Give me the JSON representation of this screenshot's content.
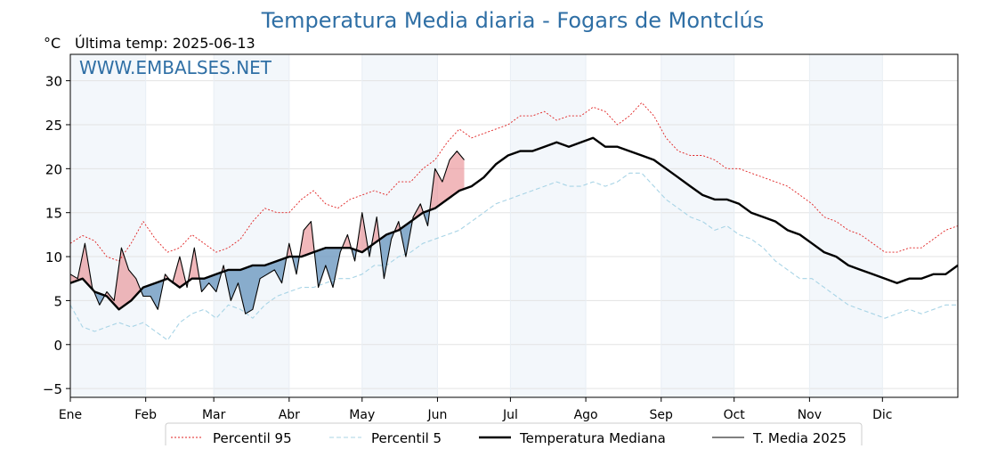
{
  "chart_data": {
    "type": "line",
    "title": "Temperatura Media diaria - Fogars de Montclús",
    "unit": "°C",
    "subtitle": "Última temp: 2025-06-13",
    "watermark": "WWW.EMBALSES.NET",
    "ylim": [
      -6,
      33
    ],
    "y_ticks": [
      -5,
      0,
      5,
      10,
      15,
      20,
      25,
      30
    ],
    "x_range_days": [
      1,
      366
    ],
    "months": [
      {
        "label": "Ene",
        "day": 1
      },
      {
        "label": "Feb",
        "day": 32
      },
      {
        "label": "Mar",
        "day": 60
      },
      {
        "label": "Abr",
        "day": 91
      },
      {
        "label": "May",
        "day": 121
      },
      {
        "label": "Jun",
        "day": 152
      },
      {
        "label": "Jul",
        "day": 182
      },
      {
        "label": "Ago",
        "day": 213
      },
      {
        "label": "Sep",
        "day": 244
      },
      {
        "label": "Oct",
        "day": 274
      },
      {
        "label": "Nov",
        "day": 305
      },
      {
        "label": "Dic",
        "day": 335
      }
    ],
    "shaded_months": [
      "Ene",
      "Mar",
      "May",
      "Jul",
      "Sep",
      "Nov"
    ],
    "grid": true,
    "legend_position": "bottom",
    "series": [
      {
        "name": "Percentil 95",
        "style": "dotted",
        "color": "#e02020",
        "x": [
          1,
          6,
          11,
          16,
          21,
          26,
          31,
          36,
          41,
          46,
          51,
          56,
          61,
          66,
          71,
          76,
          81,
          86,
          91,
          96,
          101,
          106,
          111,
          116,
          121,
          126,
          131,
          136,
          141,
          146,
          151,
          156,
          161,
          166,
          171,
          176,
          181,
          186,
          191,
          196,
          201,
          206,
          211,
          216,
          221,
          226,
          231,
          236,
          241,
          246,
          251,
          256,
          261,
          266,
          271,
          276,
          281,
          286,
          291,
          296,
          301,
          306,
          311,
          316,
          321,
          326,
          331,
          336,
          341,
          346,
          351,
          356,
          361,
          366
        ],
        "values": [
          11.5,
          12.4,
          11.8,
          10.0,
          9.5,
          11.5,
          14.0,
          12.0,
          10.5,
          11.0,
          12.5,
          11.5,
          10.5,
          11.0,
          12.0,
          14.0,
          15.5,
          15.0,
          15.0,
          16.5,
          17.5,
          16.0,
          15.5,
          16.5,
          17.0,
          17.5,
          17.0,
          18.5,
          18.5,
          20.0,
          21.0,
          23.0,
          24.5,
          23.5,
          24.0,
          24.5,
          25.0,
          26.0,
          26.0,
          26.5,
          25.5,
          26.0,
          26.0,
          27.0,
          26.5,
          25.0,
          26.0,
          27.5,
          26.0,
          23.5,
          22.0,
          21.5,
          21.5,
          21.0,
          20.0,
          20.0,
          19.5,
          19.0,
          18.5,
          18.0,
          17.0,
          16.0,
          14.5,
          14.0,
          13.0,
          12.5,
          11.5,
          10.5,
          10.5,
          11.0,
          11.0,
          12.0,
          13.0,
          13.5
        ]
      },
      {
        "name": "Percentil 5",
        "style": "dashed",
        "color": "#a8d4e6",
        "x": [
          1,
          6,
          11,
          16,
          21,
          26,
          31,
          36,
          41,
          46,
          51,
          56,
          61,
          66,
          71,
          76,
          81,
          86,
          91,
          96,
          101,
          106,
          111,
          116,
          121,
          126,
          131,
          136,
          141,
          146,
          151,
          156,
          161,
          166,
          171,
          176,
          181,
          186,
          191,
          196,
          201,
          206,
          211,
          216,
          221,
          226,
          231,
          236,
          241,
          246,
          251,
          256,
          261,
          266,
          271,
          276,
          281,
          286,
          291,
          296,
          301,
          306,
          311,
          316,
          321,
          326,
          331,
          336,
          341,
          346,
          351,
          356,
          361,
          366
        ],
        "values": [
          4.5,
          2.0,
          1.5,
          2.0,
          2.5,
          2.0,
          2.5,
          1.5,
          0.5,
          2.5,
          3.5,
          4.0,
          3.0,
          4.5,
          4.0,
          3.0,
          4.5,
          5.5,
          6.0,
          6.5,
          6.5,
          7.0,
          7.5,
          7.5,
          8.0,
          9.0,
          9.0,
          10.0,
          10.5,
          11.5,
          12.0,
          12.5,
          13.0,
          14.0,
          15.0,
          16.0,
          16.5,
          17.0,
          17.5,
          18.0,
          18.5,
          18.0,
          18.0,
          18.5,
          18.0,
          18.5,
          19.5,
          19.5,
          18.0,
          16.5,
          15.5,
          14.5,
          14.0,
          13.0,
          13.5,
          12.5,
          12.0,
          11.0,
          9.5,
          8.5,
          7.5,
          7.5,
          6.5,
          5.5,
          4.5,
          4.0,
          3.5,
          3.0,
          3.5,
          4.0,
          3.5,
          4.0,
          4.5,
          4.5
        ]
      },
      {
        "name": "Temperatura Mediana",
        "style": "thick",
        "color": "#000000",
        "x": [
          1,
          6,
          11,
          16,
          21,
          26,
          31,
          36,
          41,
          46,
          51,
          56,
          61,
          66,
          71,
          76,
          81,
          86,
          91,
          96,
          101,
          106,
          111,
          116,
          121,
          126,
          131,
          136,
          141,
          146,
          151,
          156,
          161,
          166,
          171,
          176,
          181,
          186,
          191,
          196,
          201,
          206,
          211,
          216,
          221,
          226,
          231,
          236,
          241,
          246,
          251,
          256,
          261,
          266,
          271,
          276,
          281,
          286,
          291,
          296,
          301,
          306,
          311,
          316,
          321,
          326,
          331,
          336,
          341,
          346,
          351,
          356,
          361,
          366
        ],
        "values": [
          7.0,
          7.5,
          6.0,
          5.5,
          4.0,
          5.0,
          6.5,
          7.0,
          7.5,
          6.5,
          7.5,
          7.5,
          8.0,
          8.5,
          8.5,
          9.0,
          9.0,
          9.5,
          10.0,
          10.0,
          10.5,
          11.0,
          11.0,
          11.0,
          10.5,
          11.5,
          12.5,
          13.0,
          14.0,
          15.0,
          15.5,
          16.5,
          17.5,
          18.0,
          19.0,
          20.5,
          21.5,
          22.0,
          22.0,
          22.5,
          23.0,
          22.5,
          23.0,
          23.5,
          22.5,
          22.5,
          22.0,
          21.5,
          21.0,
          20.0,
          19.0,
          18.0,
          17.0,
          16.5,
          16.5,
          16.0,
          15.0,
          14.5,
          14.0,
          13.0,
          12.5,
          11.5,
          10.5,
          10.0,
          9.0,
          8.5,
          8.0,
          7.5,
          7.0,
          7.5,
          7.5,
          8.0,
          8.0,
          9.0
        ]
      },
      {
        "name": "T. Media 2025",
        "style": "thin",
        "color": "#000000",
        "x": [
          1,
          4,
          7,
          10,
          13,
          16,
          19,
          22,
          25,
          28,
          31,
          34,
          37,
          40,
          43,
          46,
          49,
          52,
          55,
          58,
          61,
          64,
          67,
          70,
          73,
          76,
          79,
          82,
          85,
          88,
          91,
          94,
          97,
          100,
          103,
          106,
          109,
          112,
          115,
          118,
          121,
          124,
          127,
          130,
          133,
          136,
          139,
          142,
          145,
          148,
          151,
          154,
          157,
          160,
          163
        ],
        "values": [
          8.0,
          7.5,
          11.5,
          6.5,
          4.5,
          6.0,
          5.0,
          11.0,
          8.5,
          7.5,
          5.5,
          5.5,
          4.0,
          8.0,
          7.0,
          10.0,
          6.5,
          11.0,
          6.0,
          7.0,
          6.0,
          9.0,
          5.0,
          7.0,
          3.5,
          4.0,
          7.5,
          8.0,
          8.5,
          7.0,
          11.5,
          8.0,
          13.0,
          14.0,
          6.5,
          9.0,
          6.5,
          10.5,
          12.5,
          9.5,
          15.0,
          10.0,
          14.5,
          7.5,
          12.0,
          14.0,
          10.0,
          14.5,
          16.0,
          13.5,
          20.0,
          18.5,
          21.0,
          22.0,
          21.0
        ]
      }
    ],
    "fill_above_color": "#e8888d",
    "fill_below_color": "#6d98c0",
    "legend": [
      "Percentil 95",
      "Percentil 5",
      "Temperatura Mediana",
      "T. Media 2025"
    ]
  }
}
